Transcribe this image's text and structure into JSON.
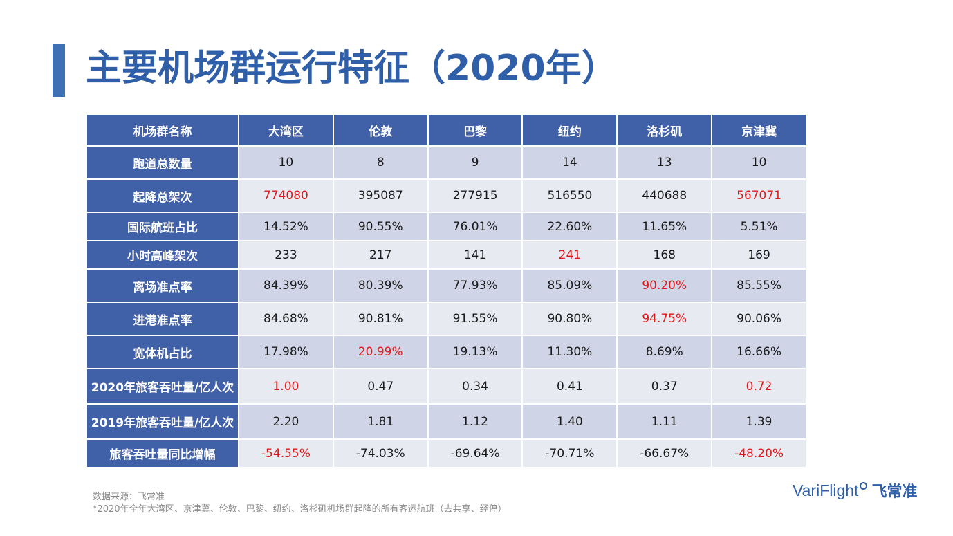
{
  "title": "主要机场群运行特征（2020年）",
  "table": {
    "header": [
      "机场群名称",
      "大湾区",
      "伦敦",
      "巴黎",
      "纽约",
      "洛杉矶",
      "京津冀"
    ],
    "rows": [
      {
        "label": "跑道总数量",
        "values": [
          "10",
          "8",
          "9",
          "14",
          "13",
          "10"
        ],
        "highlight": [],
        "height": 48
      },
      {
        "label": "起降总架次",
        "values": [
          "774080",
          "395087",
          "277915",
          "516550",
          "440688",
          "567071"
        ],
        "highlight": [
          0,
          5
        ],
        "height": 48
      },
      {
        "label": "国际航班占比",
        "values": [
          "14.52%",
          "90.55%",
          "76.01%",
          "22.60%",
          "11.65%",
          "5.51%"
        ],
        "highlight": [],
        "height": 41
      },
      {
        "label": "小时高峰架次",
        "values": [
          "233",
          "217",
          "141",
          "241",
          "168",
          "169"
        ],
        "highlight": [
          3
        ],
        "height": 41
      },
      {
        "label": "离场准点率",
        "values": [
          "84.39%",
          "80.39%",
          "77.93%",
          "85.09%",
          "90.20%",
          "85.55%"
        ],
        "highlight": [
          4
        ],
        "height": 48
      },
      {
        "label": "进港准点率",
        "values": [
          "84.68%",
          "90.81%",
          "91.55%",
          "90.80%",
          "94.75%",
          "90.06%"
        ],
        "highlight": [
          4
        ],
        "height": 48
      },
      {
        "label": "宽体机占比",
        "values": [
          "17.98%",
          "20.99%",
          "19.13%",
          "11.30%",
          "8.69%",
          "16.66%"
        ],
        "highlight": [
          1
        ],
        "height": 48
      },
      {
        "label": "2020年旅客吞吐量/亿人次",
        "values": [
          "1.00",
          "0.47",
          "0.34",
          "0.41",
          "0.37",
          "0.72"
        ],
        "highlight": [
          0,
          5
        ],
        "height": 51
      },
      {
        "label": "2019年旅客吞吐量/亿人次",
        "values": [
          "2.20",
          "1.81",
          "1.12",
          "1.40",
          "1.11",
          "1.39"
        ],
        "highlight": [],
        "height": 51
      },
      {
        "label": "旅客吞吐量同比增幅",
        "values": [
          "-54.55%",
          "-74.03%",
          "-69.64%",
          "-70.71%",
          "-66.67%",
          "-48.20%"
        ],
        "highlight": [
          0,
          5
        ],
        "height": 41
      }
    ]
  },
  "footer": {
    "source": "数据来源：飞常准",
    "note": "*2020年全年大湾区、京津冀、伦敦、巴黎、纽约、洛杉矶机场群起降的所有客运航班（去共享、经停）"
  },
  "logo": {
    "latin": "VariFlight",
    "chinese": "飞常准"
  },
  "colors": {
    "title": "#2f5fa8",
    "header_bg": "#4060a8",
    "row_dark": "#cfd4e6",
    "row_light": "#e8eaf2",
    "highlight": "#e01818"
  }
}
